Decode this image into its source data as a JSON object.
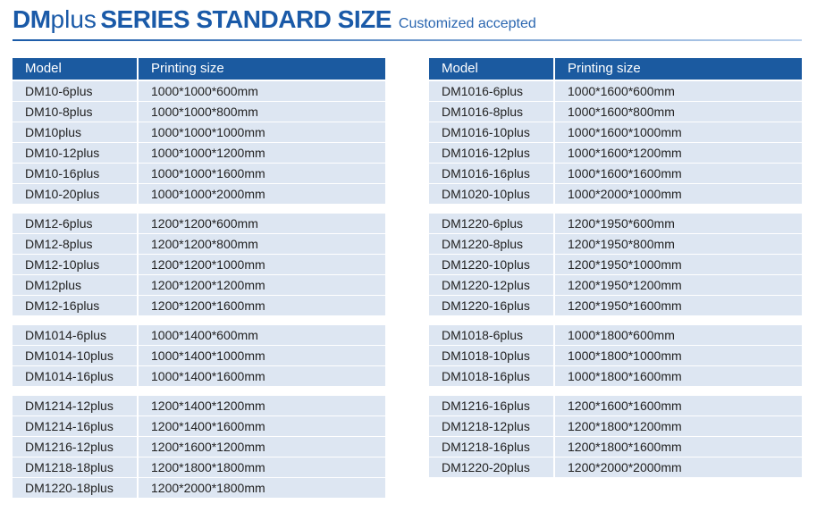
{
  "title": {
    "bold": "DM",
    "light": "plus",
    "rest": "SERIES STANDARD SIZE",
    "subtitle": "Customized accepted"
  },
  "tables": [
    {
      "header": [
        "Model",
        "Printing size"
      ],
      "groups": [
        [
          [
            "DM10-6plus",
            "1000*1000*600mm"
          ],
          [
            "DM10-8plus",
            "1000*1000*800mm"
          ],
          [
            "DM10plus",
            "1000*1000*1000mm"
          ],
          [
            "DM10-12plus",
            "1000*1000*1200mm"
          ],
          [
            "DM10-16plus",
            "1000*1000*1600mm"
          ],
          [
            "DM10-20plus",
            "1000*1000*2000mm"
          ]
        ],
        [
          [
            "DM12-6plus",
            "1200*1200*600mm"
          ],
          [
            "DM12-8plus",
            "1200*1200*800mm"
          ],
          [
            "DM12-10plus",
            "1200*1200*1000mm"
          ],
          [
            "DM12plus",
            "1200*1200*1200mm"
          ],
          [
            "DM12-16plus",
            "1200*1200*1600mm"
          ]
        ],
        [
          [
            "DM1014-6plus",
            "1000*1400*600mm"
          ],
          [
            "DM1014-10plus",
            "1000*1400*1000mm"
          ],
          [
            "DM1014-16plus",
            "1000*1400*1600mm"
          ]
        ],
        [
          [
            "DM1214-12plus",
            "1200*1400*1200mm"
          ],
          [
            "DM1214-16plus",
            "1200*1400*1600mm"
          ],
          [
            "DM1216-12plus",
            "1200*1600*1200mm"
          ],
          [
            "DM1218-18plus",
            "1200*1800*1800mm"
          ],
          [
            "DM1220-18plus",
            "1200*2000*1800mm"
          ]
        ]
      ]
    },
    {
      "header": [
        "Model",
        "Printing size"
      ],
      "groups": [
        [
          [
            "DM1016-6plus",
            "1000*1600*600mm"
          ],
          [
            "DM1016-8plus",
            "1000*1600*800mm"
          ],
          [
            "DM1016-10plus",
            "1000*1600*1000mm"
          ],
          [
            "DM1016-12plus",
            "1000*1600*1200mm"
          ],
          [
            "DM1016-16plus",
            "1000*1600*1600mm"
          ],
          [
            "DM1020-10plus",
            "1000*2000*1000mm"
          ]
        ],
        [
          [
            "DM1220-6plus",
            "1200*1950*600mm"
          ],
          [
            "DM1220-8plus",
            "1200*1950*800mm"
          ],
          [
            "DM1220-10plus",
            "1200*1950*1000mm"
          ],
          [
            "DM1220-12plus",
            "1200*1950*1200mm"
          ],
          [
            "DM1220-16plus",
            "1200*1950*1600mm"
          ]
        ],
        [
          [
            "DM1018-6plus",
            "1000*1800*600mm"
          ],
          [
            "DM1018-10plus",
            "1000*1800*1000mm"
          ],
          [
            "DM1018-16plus",
            "1000*1800*1600mm"
          ]
        ],
        [
          [
            "DM1216-16plus",
            "1200*1600*1600mm"
          ],
          [
            "DM1218-12plus",
            "1200*1800*1200mm"
          ],
          [
            "DM1218-16plus",
            "1200*1800*1600mm"
          ],
          [
            "DM1220-20plus",
            "1200*2000*2000mm"
          ]
        ]
      ]
    }
  ]
}
